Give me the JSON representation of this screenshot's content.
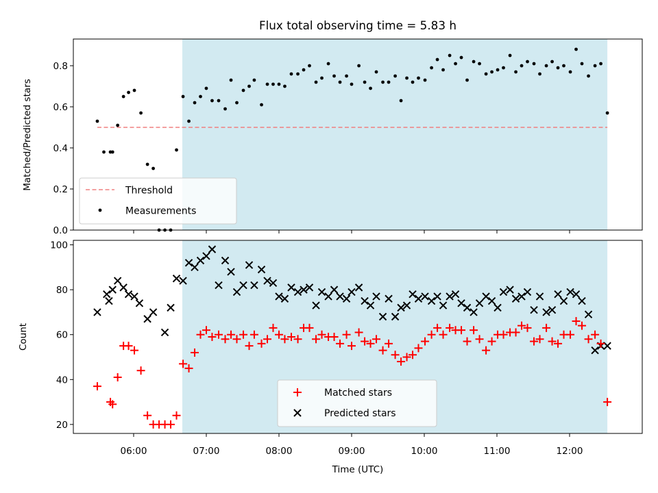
{
  "figure": {
    "title": "Flux total observing time = 5.83 h"
  },
  "colors": {
    "band": "#add8e6",
    "threshold": "#f08080",
    "measurements": "#000000",
    "matched": "#ff0000",
    "predicted": "#000000"
  },
  "chart_data": [
    {
      "type": "scatter",
      "ylabel": "Matched/Predicted stars",
      "ylim": [
        0,
        0.93
      ],
      "yticks": [
        0.0,
        0.2,
        0.4,
        0.6,
        0.8
      ],
      "ytick_labels": [
        "0.0",
        "0.2",
        "0.4",
        "0.6",
        "0.8"
      ],
      "xlim_hours": [
        5.17,
        13.0
      ],
      "shaded_region_hours": [
        6.67,
        12.52
      ],
      "threshold": {
        "name": "Threshold",
        "value": 0.5,
        "x_range_hours": [
          5.5,
          12.52
        ]
      },
      "legend": {
        "position": "lower left",
        "entries": [
          "Threshold",
          "Measurements"
        ]
      },
      "series": [
        {
          "name": "Measurements",
          "x_hours": [
            5.5,
            5.59,
            5.68,
            5.71,
            5.78,
            5.86,
            5.93,
            6.01,
            6.1,
            6.19,
            6.27,
            6.35,
            6.43,
            6.51,
            6.59,
            6.68,
            6.76,
            6.84,
            6.92,
            7.0,
            7.08,
            7.17,
            7.26,
            7.34,
            7.42,
            7.51,
            7.59,
            7.66,
            7.76,
            7.84,
            7.92,
            8.0,
            8.08,
            8.17,
            8.26,
            8.34,
            8.42,
            8.51,
            8.59,
            8.68,
            8.76,
            8.84,
            8.93,
            9.0,
            9.1,
            9.18,
            9.26,
            9.34,
            9.43,
            9.51,
            9.6,
            9.68,
            9.76,
            9.84,
            9.92,
            10.01,
            10.1,
            10.18,
            10.26,
            10.35,
            10.43,
            10.51,
            10.59,
            10.68,
            10.76,
            10.85,
            10.93,
            11.01,
            11.09,
            11.18,
            11.26,
            11.34,
            11.42,
            11.51,
            11.59,
            11.68,
            11.76,
            11.84,
            11.92,
            12.01,
            12.09,
            12.17,
            12.26,
            12.35,
            12.43,
            12.52
          ],
          "y": [
            0.53,
            0.38,
            0.38,
            0.38,
            0.51,
            0.65,
            0.67,
            0.68,
            0.57,
            0.32,
            0.3,
            0.0,
            0.0,
            0.0,
            0.39,
            0.65,
            0.53,
            0.62,
            0.65,
            0.69,
            0.63,
            0.63,
            0.59,
            0.73,
            0.62,
            0.68,
            0.7,
            0.73,
            0.61,
            0.71,
            0.71,
            0.71,
            0.7,
            0.76,
            0.76,
            0.78,
            0.8,
            0.72,
            0.74,
            0.81,
            0.75,
            0.72,
            0.75,
            0.71,
            0.8,
            0.72,
            0.69,
            0.77,
            0.72,
            0.72,
            0.75,
            0.63,
            0.74,
            0.72,
            0.74,
            0.73,
            0.79,
            0.83,
            0.78,
            0.85,
            0.81,
            0.84,
            0.73,
            0.82,
            0.81,
            0.76,
            0.77,
            0.78,
            0.79,
            0.85,
            0.77,
            0.8,
            0.82,
            0.81,
            0.76,
            0.8,
            0.82,
            0.79,
            0.8,
            0.77,
            0.88,
            0.81,
            0.75,
            0.8,
            0.81,
            0.57
          ]
        }
      ]
    },
    {
      "type": "scatter",
      "xlabel": "Time (UTC)",
      "ylabel": "Count",
      "ylim": [
        16,
        102
      ],
      "yticks": [
        20,
        40,
        60,
        80,
        100
      ],
      "ytick_labels": [
        "20",
        "40",
        "60",
        "80",
        "100"
      ],
      "xlim_hours": [
        5.17,
        13.0
      ],
      "xticks_hours": [
        6,
        7,
        8,
        9,
        10,
        11,
        12
      ],
      "xtick_labels": [
        "06:00",
        "07:00",
        "08:00",
        "09:00",
        "10:00",
        "11:00",
        "12:00"
      ],
      "shaded_region_hours": [
        6.67,
        12.52
      ],
      "legend": {
        "position": "lower center",
        "entries": [
          "Matched stars",
          "Predicted stars"
        ]
      },
      "series": [
        {
          "name": "Matched stars",
          "marker": "plus",
          "x_hours": [
            5.5,
            5.68,
            5.71,
            5.78,
            5.86,
            5.93,
            6.01,
            6.1,
            6.19,
            6.27,
            6.35,
            6.43,
            6.51,
            6.59,
            6.68,
            6.76,
            6.84,
            6.92,
            7.0,
            7.08,
            7.17,
            7.26,
            7.34,
            7.42,
            7.51,
            7.59,
            7.66,
            7.76,
            7.84,
            7.92,
            8.0,
            8.08,
            8.17,
            8.26,
            8.34,
            8.42,
            8.51,
            8.59,
            8.68,
            8.76,
            8.84,
            8.93,
            9.0,
            9.1,
            9.18,
            9.26,
            9.34,
            9.43,
            9.51,
            9.6,
            9.68,
            9.76,
            9.84,
            9.92,
            10.01,
            10.1,
            10.18,
            10.26,
            10.35,
            10.43,
            10.51,
            10.59,
            10.68,
            10.76,
            10.85,
            10.93,
            11.01,
            11.09,
            11.18,
            11.26,
            11.34,
            11.42,
            11.51,
            11.59,
            11.68,
            11.76,
            11.84,
            11.92,
            12.01,
            12.09,
            12.17,
            12.26,
            12.35,
            12.43,
            12.52
          ],
          "y": [
            37,
            30,
            29,
            41,
            55,
            55,
            53,
            44,
            24,
            20,
            20,
            20,
            20,
            24,
            47,
            45,
            52,
            60,
            62,
            59,
            60,
            58,
            60,
            58,
            60,
            55,
            60,
            56,
            58,
            63,
            60,
            58,
            59,
            58,
            63,
            63,
            58,
            60,
            59,
            59,
            56,
            60,
            55,
            61,
            57,
            56,
            58,
            53,
            56,
            51,
            48,
            50,
            51,
            54,
            57,
            60,
            63,
            60,
            63,
            62,
            62,
            57,
            62,
            58,
            53,
            57,
            60,
            60,
            61,
            61,
            64,
            63,
            57,
            58,
            63,
            57,
            56,
            60,
            60,
            66,
            64,
            58,
            60,
            56,
            30
          ]
        },
        {
          "name": "Predicted stars",
          "marker": "x",
          "x_hours": [
            5.5,
            5.63,
            5.66,
            5.71,
            5.78,
            5.86,
            5.93,
            6.01,
            6.08,
            6.19,
            6.27,
            6.43,
            6.51,
            6.59,
            6.68,
            6.76,
            6.84,
            6.92,
            7.0,
            7.08,
            7.17,
            7.26,
            7.34,
            7.42,
            7.51,
            7.59,
            7.66,
            7.76,
            7.84,
            7.92,
            8.0,
            8.08,
            8.17,
            8.26,
            8.34,
            8.42,
            8.51,
            8.59,
            8.68,
            8.76,
            8.84,
            8.93,
            9.0,
            9.1,
            9.18,
            9.26,
            9.34,
            9.43,
            9.51,
            9.6,
            9.68,
            9.76,
            9.84,
            9.92,
            10.01,
            10.1,
            10.18,
            10.26,
            10.35,
            10.43,
            10.51,
            10.59,
            10.68,
            10.76,
            10.85,
            10.93,
            11.01,
            11.09,
            11.18,
            11.26,
            11.34,
            11.42,
            11.51,
            11.59,
            11.68,
            11.76,
            11.84,
            11.92,
            12.01,
            12.09,
            12.17,
            12.26,
            12.35,
            12.43,
            12.52
          ],
          "y": [
            70,
            78,
            75,
            80,
            84,
            81,
            78,
            77,
            74,
            67,
            70,
            61,
            72,
            85,
            84,
            92,
            90,
            93,
            95,
            98,
            82,
            93,
            88,
            79,
            82,
            91,
            82,
            89,
            84,
            83,
            77,
            76,
            81,
            79,
            80,
            81,
            73,
            79,
            77,
            80,
            77,
            76,
            79,
            81,
            75,
            73,
            77,
            68,
            76,
            68,
            72,
            73,
            78,
            76,
            77,
            75,
            77,
            73,
            77,
            78,
            74,
            72,
            70,
            74,
            77,
            75,
            72,
            79,
            80,
            76,
            77,
            79,
            71,
            77,
            70,
            71,
            78,
            75,
            79,
            78,
            75,
            69,
            53,
            55,
            55
          ]
        }
      ]
    }
  ]
}
